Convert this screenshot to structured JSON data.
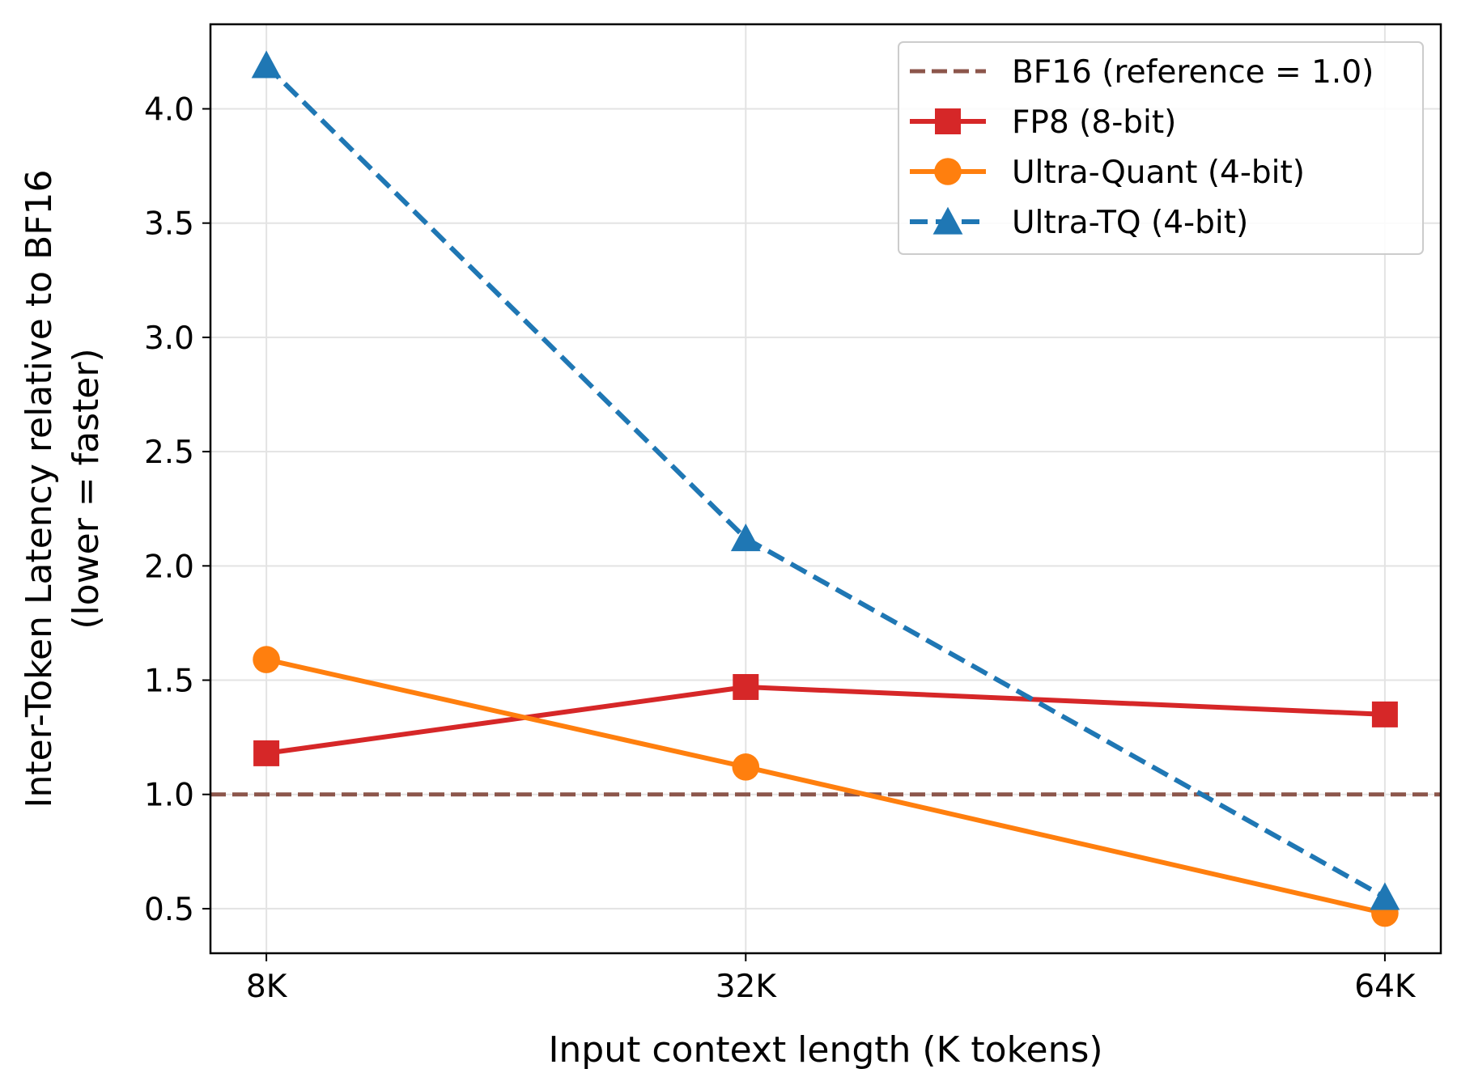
{
  "chart_data": {
    "type": "line",
    "title": "",
    "xlabel": "Input context length (K tokens)",
    "ylabel": "Inter-Token Latency relative to BF16",
    "ylabel_line2": "(lower = faster)",
    "categories": [
      "8K",
      "32K",
      "64K"
    ],
    "x": [
      8,
      32,
      64
    ],
    "xlim": [
      5.2,
      66.8
    ],
    "ylim": [
      0.305,
      4.37
    ],
    "yticks": [
      0.5,
      1.0,
      1.5,
      2.0,
      2.5,
      3.0,
      3.5,
      4.0
    ],
    "ytick_labels": [
      "0.5",
      "1.0",
      "1.5",
      "2.0",
      "2.5",
      "3.0",
      "3.5",
      "4.0"
    ],
    "grid": true,
    "legend_position": "top-right",
    "reference_line": {
      "name": "BF16 (reference = 1.0)",
      "value": 1.0,
      "color": "#8c564b",
      "style": "dashed"
    },
    "series": [
      {
        "name": "FP8 (8-bit)",
        "values": [
          1.18,
          1.47,
          1.35
        ],
        "color": "#d62728",
        "marker": "square",
        "style": "solid"
      },
      {
        "name": "Ultra-Quant (4-bit)",
        "values": [
          1.59,
          1.12,
          0.48
        ],
        "color": "#ff7f0e",
        "marker": "circle",
        "style": "solid"
      },
      {
        "name": "Ultra-TQ (4-bit)",
        "values": [
          4.19,
          2.12,
          0.55
        ],
        "color": "#1f77b4",
        "marker": "triangle",
        "style": "dashed"
      }
    ]
  }
}
